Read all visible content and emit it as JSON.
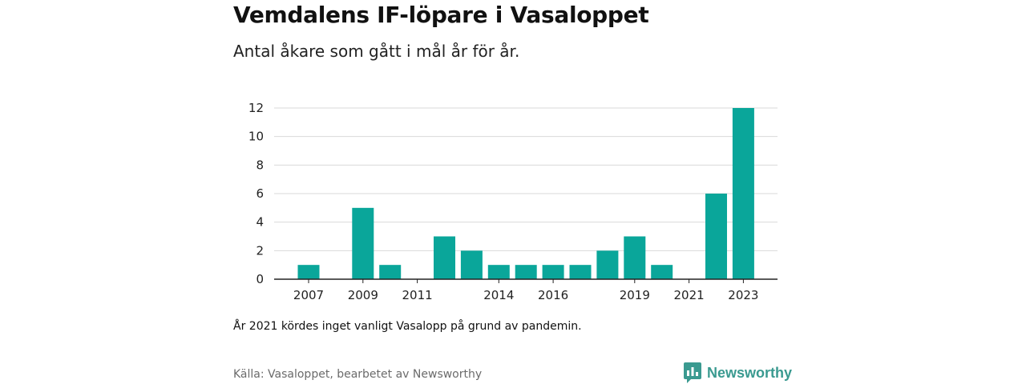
{
  "header": {
    "title": "Vemdalens IF-löpare i Vasaloppet",
    "subtitle": "Antal åkare som gått i mål år för år."
  },
  "footer": {
    "note": "År 2021 kördes inget vanligt Vasalopp på grund av pandemin.",
    "source": "Källa: Vasaloppet, bearbetet av Newsworthy",
    "logo_text": "Newsworthy"
  },
  "colors": {
    "bar": "#0aa69a",
    "grid": "#d9d9d9",
    "axis": "#222222",
    "logo": "#3a9a90"
  },
  "chart_data": {
    "type": "bar",
    "categories": [
      "2007",
      "2008",
      "2009",
      "2010",
      "2011",
      "2012",
      "2013",
      "2014",
      "2015",
      "2016",
      "2017",
      "2018",
      "2019",
      "2020",
      "2021",
      "2022",
      "2023"
    ],
    "values": [
      1,
      0,
      5,
      1,
      0,
      3,
      2,
      1,
      1,
      1,
      1,
      2,
      3,
      1,
      0,
      6,
      12
    ],
    "x_tick_labels": [
      "2007",
      "2009",
      "2011",
      "2014",
      "2016",
      "2019",
      "2021",
      "2023"
    ],
    "y_ticks": [
      0,
      2,
      4,
      6,
      8,
      10,
      12
    ],
    "ylim": [
      0,
      12
    ],
    "grid": true,
    "legend": "none"
  }
}
